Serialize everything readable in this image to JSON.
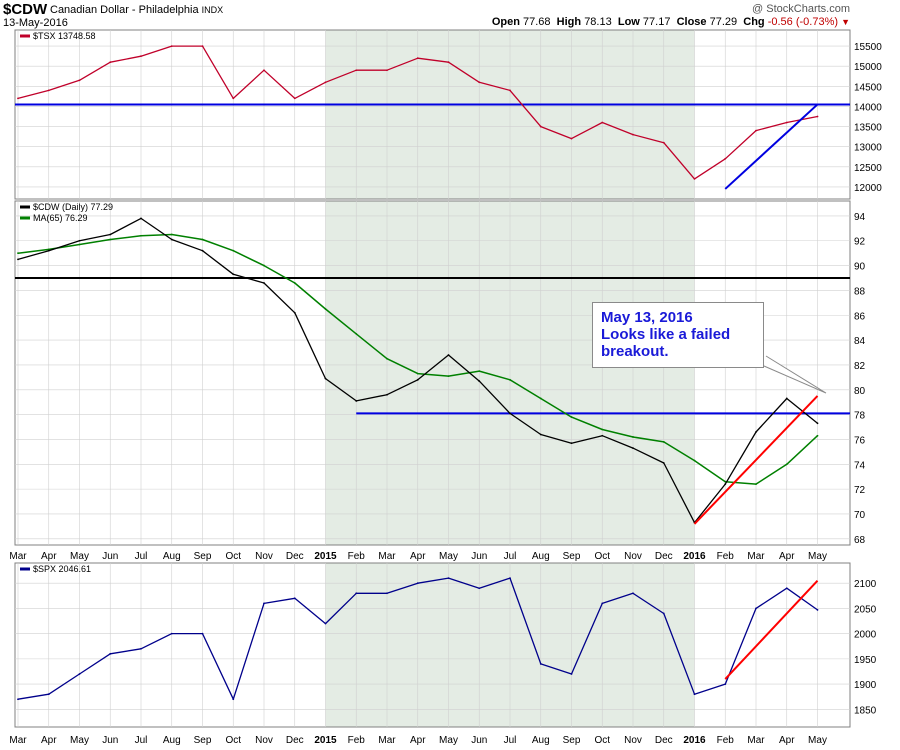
{
  "header": {
    "symbol": "$CDW",
    "name": "Canadian Dollar - Philadelphia",
    "exchange": "INDX",
    "date": "13-May-2016",
    "credit": "@ StockCharts.com",
    "open_label": "Open",
    "open": "77.68",
    "high_label": "High",
    "high": "78.13",
    "low_label": "Low",
    "low": "77.17",
    "close_label": "Close",
    "close": "77.29",
    "chg_label": "Chg",
    "chg": "-0.56 (-0.73%)"
  },
  "annotation": {
    "line1": "May 13, 2016",
    "line2": "Looks like a failed",
    "line3": "breakout."
  },
  "chart_data": [
    {
      "type": "line",
      "panel": "top",
      "legend": "$TSX 13748.58",
      "ylim": [
        11700,
        15900
      ],
      "yticks": [
        12000,
        12500,
        13000,
        13500,
        14000,
        14500,
        15000,
        15500
      ],
      "colors": {
        "series": "#c0002a",
        "hline": "#0000e0",
        "trend": "#0000e0"
      },
      "horizontal_line": 14050,
      "trendline": {
        "from": [
          "2016-02",
          11950
        ],
        "to": [
          "2016-05",
          14050
        ]
      },
      "x": [
        "2014-03",
        "2014-04",
        "2014-05",
        "2014-06",
        "2014-07",
        "2014-08",
        "2014-09",
        "2014-10",
        "2014-11",
        "2014-12",
        "2015-01",
        "2015-02",
        "2015-03",
        "2015-04",
        "2015-05",
        "2015-06",
        "2015-07",
        "2015-08",
        "2015-09",
        "2015-10",
        "2015-11",
        "2015-12",
        "2016-01",
        "2016-02",
        "2016-03",
        "2016-04",
        "2016-05"
      ],
      "values": [
        14200,
        14400,
        14650,
        15100,
        15250,
        15500,
        15500,
        14200,
        14900,
        14200,
        14600,
        14900,
        14900,
        15200,
        15100,
        14600,
        14400,
        13500,
        13200,
        13600,
        13300,
        13100,
        12200,
        12700,
        13400,
        13600,
        13750
      ],
      "series": [
        {
          "name": "$TSX 13748.58"
        }
      ]
    },
    {
      "type": "line",
      "panel": "middle",
      "legend": [
        "$CDW (Daily) 77.29",
        "MA(65) 76.29"
      ],
      "ylim": [
        67.5,
        95.2
      ],
      "yticks": [
        68,
        70,
        72,
        74,
        76,
        78,
        80,
        82,
        84,
        86,
        88,
        90,
        92,
        94
      ],
      "colors": {
        "price": "#000000",
        "ma": "#008000",
        "hline_black": "#000000",
        "hline_blue": "#0000e0",
        "trend": "#ff0000"
      },
      "horizontal_lines": [
        89,
        78.1
      ],
      "trendline": {
        "from": [
          "2016-01",
          69.2
        ],
        "to": [
          "2016-05",
          79.5
        ]
      },
      "x": [
        "2014-03",
        "2014-04",
        "2014-05",
        "2014-06",
        "2014-07",
        "2014-08",
        "2014-09",
        "2014-10",
        "2014-11",
        "2014-12",
        "2015-01",
        "2015-02",
        "2015-03",
        "2015-04",
        "2015-05",
        "2015-06",
        "2015-07",
        "2015-08",
        "2015-09",
        "2015-10",
        "2015-11",
        "2015-12",
        "2016-01",
        "2016-02",
        "2016-03",
        "2016-04",
        "2016-05"
      ],
      "series": [
        {
          "name": "$CDW (Daily) 77.29",
          "values": [
            90.5,
            91.2,
            92.0,
            92.5,
            93.8,
            92.1,
            91.2,
            89.3,
            88.6,
            86.2,
            80.9,
            79.1,
            79.6,
            80.8,
            82.8,
            80.7,
            78.1,
            76.4,
            75.7,
            76.3,
            75.3,
            74.1,
            69.3,
            72.4,
            76.6,
            79.3,
            77.3
          ]
        },
        {
          "name": "MA(65) 76.29",
          "values": [
            91.0,
            91.3,
            91.7,
            92.1,
            92.4,
            92.5,
            92.1,
            91.2,
            90.0,
            88.6,
            86.5,
            84.5,
            82.5,
            81.3,
            81.1,
            81.5,
            80.8,
            79.3,
            77.8,
            76.8,
            76.2,
            75.8,
            74.3,
            72.6,
            72.4,
            74.0,
            76.3
          ]
        }
      ]
    },
    {
      "type": "line",
      "panel": "bottom",
      "legend": "$SPX 2046.61",
      "ylim": [
        1815,
        2140
      ],
      "yticks": [
        1850,
        1900,
        1950,
        2000,
        2050,
        2100
      ],
      "colors": {
        "series": "#00008b",
        "trend": "#ff0000"
      },
      "trendline": {
        "from": [
          "2016-02",
          1910
        ],
        "to": [
          "2016-05",
          2105
        ]
      },
      "x": [
        "2014-03",
        "2014-04",
        "2014-05",
        "2014-06",
        "2014-07",
        "2014-08",
        "2014-09",
        "2014-10",
        "2014-11",
        "2014-12",
        "2015-01",
        "2015-02",
        "2015-03",
        "2015-04",
        "2015-05",
        "2015-06",
        "2015-07",
        "2015-08",
        "2015-09",
        "2015-10",
        "2015-11",
        "2015-12",
        "2016-01",
        "2016-02",
        "2016-03",
        "2016-04",
        "2016-05"
      ],
      "values": [
        1870,
        1880,
        1920,
        1960,
        1970,
        2000,
        2000,
        1870,
        2060,
        2070,
        2020,
        2080,
        2080,
        2100,
        2110,
        2090,
        2110,
        1940,
        1920,
        2060,
        2080,
        2040,
        1880,
        1900,
        2050,
        2090,
        2047
      ],
      "series": [
        {
          "name": "$SPX 2046.61"
        }
      ]
    }
  ],
  "axis_labels": {
    "months": [
      "Mar",
      "Apr",
      "May",
      "Jun",
      "Jul",
      "Aug",
      "Sep",
      "Oct",
      "Nov",
      "Dec",
      "2015",
      "Feb",
      "Mar",
      "Apr",
      "May",
      "Jun",
      "Jul",
      "Aug",
      "Sep",
      "Oct",
      "Nov",
      "Dec",
      "2016",
      "Feb",
      "Mar",
      "Apr",
      "May"
    ],
    "bold_labels": [
      "2015",
      "2016"
    ]
  },
  "colors": {
    "panel_bg": "#ffffff",
    "shaded_bg": "#e4ece4",
    "grid": "#d0d0d0",
    "border": "#808080"
  }
}
